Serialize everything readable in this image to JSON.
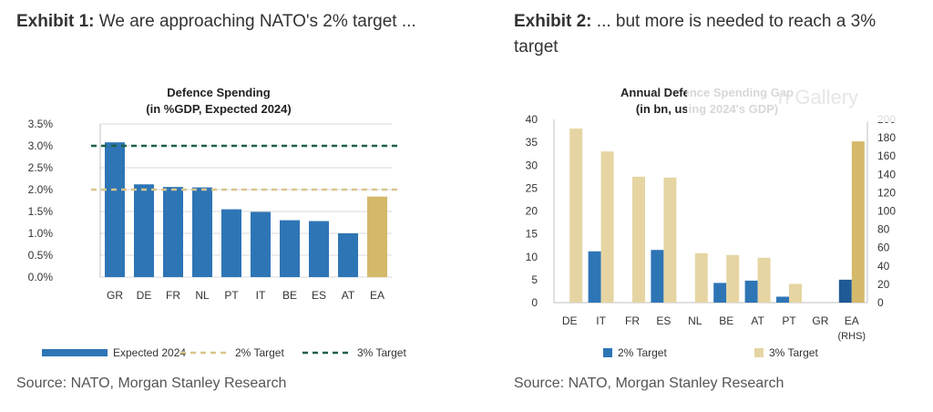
{
  "exhibit1": {
    "heading_bold": "Exhibit 1:",
    "heading_text": " We are approaching NATO's 2% target ...",
    "source": "Source: NATO, Morgan Stanley Research"
  },
  "exhibit2": {
    "heading_bold": "Exhibit 2:",
    "heading_text": " ... but more is needed to reach a 3% target",
    "source": "Source: NATO, Morgan Stanley Research",
    "watermark_text": "n Gallery"
  },
  "colors": {
    "blue": "#2e75b6",
    "dark_blue": "#1f5a96",
    "gold": "#d4b96a",
    "beige": "#e6d5a3",
    "green_dashed": "#1f5f4a",
    "gold_dashed": "#d9c48a",
    "grid": "#d9d9d9"
  },
  "chart_data": [
    {
      "type": "bar",
      "title": "Defence Spending",
      "subtitle": "(in %GDP, Expected 2024)",
      "categories": [
        "GR",
        "DE",
        "FR",
        "NL",
        "PT",
        "IT",
        "BE",
        "ES",
        "AT",
        "EA"
      ],
      "series": [
        {
          "name": "Expected 2024",
          "values": [
            3.08,
            2.12,
            2.06,
            2.05,
            1.55,
            1.49,
            1.3,
            1.28,
            1.0,
            1.84
          ]
        }
      ],
      "highlight_category": "EA",
      "reference_lines": [
        {
          "name": "2% Target",
          "value": 2.0
        },
        {
          "name": "3% Target",
          "value": 3.0
        }
      ],
      "y_ticks": [
        "0.0%",
        "0.5%",
        "1.0%",
        "1.5%",
        "2.0%",
        "2.5%",
        "3.0%",
        "3.5%"
      ],
      "ylim": [
        0,
        3.5
      ],
      "legend_position": "bottom"
    },
    {
      "type": "bar",
      "title": "Annual Defence Spending Gap",
      "subtitle": "(in bn, using 2024's GDP)",
      "categories": [
        "DE",
        "IT",
        "FR",
        "ES",
        "NL",
        "BE",
        "AT",
        "PT",
        "GR",
        "EA\n(RHS)"
      ],
      "category_labels": [
        "DE",
        "IT",
        "FR",
        "ES",
        "NL",
        "BE",
        "AT",
        "PT",
        "GR",
        "EA"
      ],
      "ea_sublabel": "(RHS)",
      "series": [
        {
          "name": "2% Target",
          "values": [
            0,
            11.2,
            0,
            11.5,
            0,
            4.3,
            4.8,
            1.3,
            0,
            25
          ]
        },
        {
          "name": "3% Target",
          "values": [
            38,
            33,
            27.5,
            27.3,
            10.8,
            10.4,
            9.8,
            4.1,
            0,
            176
          ]
        }
      ],
      "rhs_category": "EA",
      "y_ticks_left": [
        "0",
        "5",
        "10",
        "15",
        "20",
        "25",
        "30",
        "35",
        "40"
      ],
      "y_ticks_right": [
        "0",
        "20",
        "40",
        "60",
        "80",
        "100",
        "120",
        "140",
        "160",
        "180",
        "200"
      ],
      "ylim_left": [
        0,
        40
      ],
      "ylim_right": [
        0,
        200
      ],
      "legend_position": "bottom"
    }
  ]
}
